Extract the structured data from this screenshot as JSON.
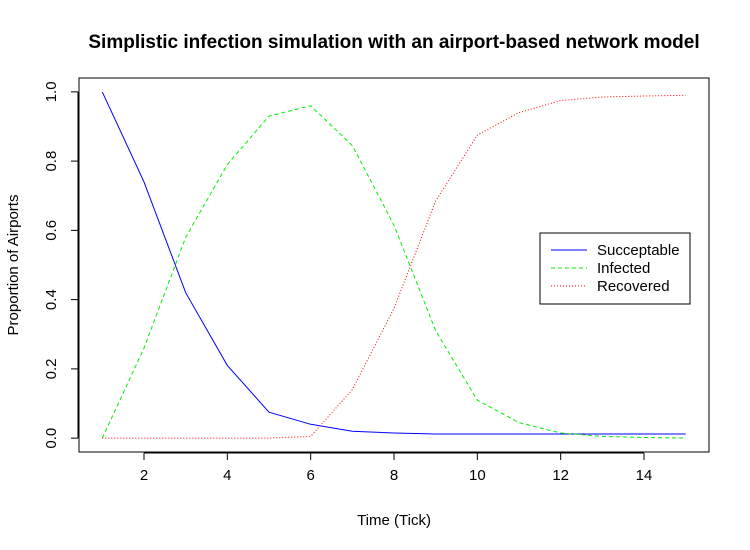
{
  "chart_data": {
    "type": "line",
    "title": "Simplistic infection simulation with an airport-based network model",
    "xlabel": "Time (Tick)",
    "ylabel": "Proportion of Airports",
    "xlim": [
      0.44,
      15.56
    ],
    "ylim": [
      -0.04,
      1.04
    ],
    "x_ticks": [
      2,
      4,
      6,
      8,
      10,
      12,
      14
    ],
    "y_ticks": [
      0.0,
      0.2,
      0.4,
      0.6,
      0.8,
      1.0
    ],
    "y_tick_labels": [
      "0.0",
      "0.2",
      "0.4",
      "0.6",
      "0.8",
      "1.0"
    ],
    "legend_position": "right",
    "x": [
      1,
      2,
      3,
      4,
      5,
      6,
      7,
      8,
      9,
      10,
      11,
      12,
      13,
      14,
      15
    ],
    "series": [
      {
        "name": "Succeptable",
        "color": "#0000ff",
        "dash": "solid",
        "values": [
          1.0,
          0.74,
          0.42,
          0.21,
          0.075,
          0.04,
          0.02,
          0.015,
          0.012,
          0.012,
          0.012,
          0.012,
          0.012,
          0.012,
          0.012
        ]
      },
      {
        "name": "Infected",
        "color": "#00ee00",
        "dash": "dashed",
        "values": [
          0.0,
          0.26,
          0.58,
          0.79,
          0.93,
          0.96,
          0.845,
          0.615,
          0.31,
          0.11,
          0.045,
          0.015,
          0.005,
          0.002,
          0.0
        ]
      },
      {
        "name": "Recovered",
        "color": "#ff0000",
        "dash": "dotted",
        "values": [
          0.0,
          0.0,
          0.0,
          0.0,
          0.0,
          0.005,
          0.14,
          0.375,
          0.685,
          0.875,
          0.94,
          0.975,
          0.985,
          0.988,
          0.99
        ]
      }
    ]
  }
}
